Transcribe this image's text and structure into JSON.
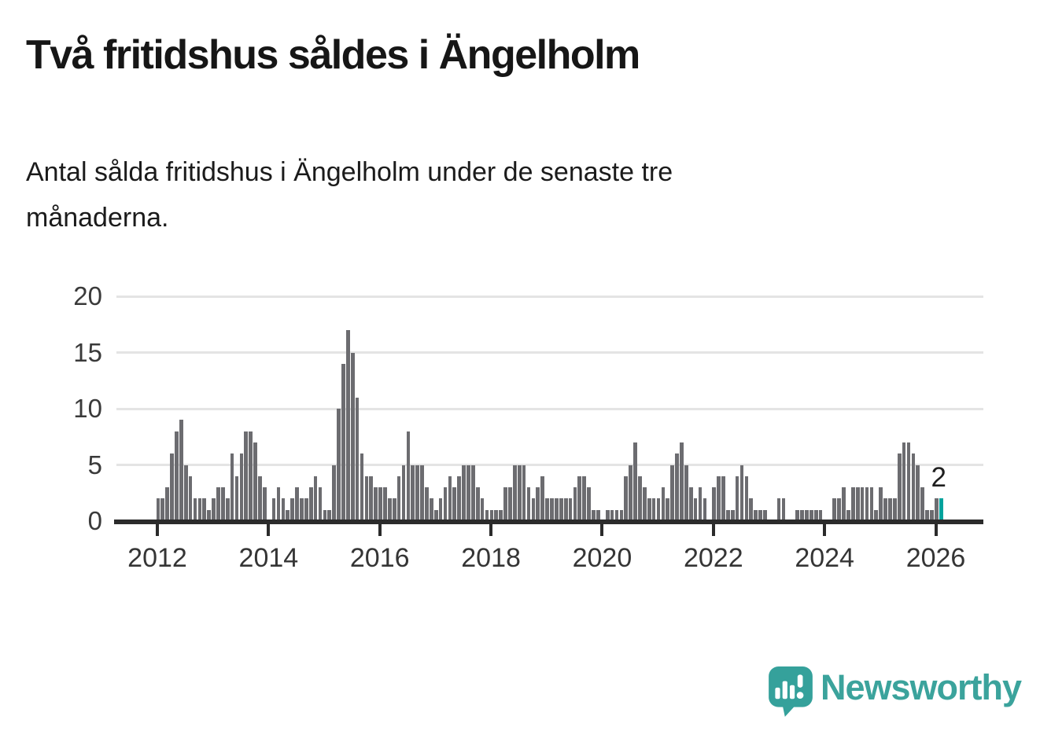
{
  "header": {
    "title": "Två fritidshus såldes i Ängelholm",
    "subtitle": "Antal sålda fritidshus i Ängelholm under de senaste tre månaderna.",
    "subtitle_lines": [
      "Antal sålda fritidshus i Ängelholm under de senaste tre",
      "månaderna."
    ]
  },
  "chart_data": {
    "type": "bar",
    "title": "Två fritidshus såldes i Ängelholm",
    "xlabel": "",
    "ylabel": "",
    "x_start": "2012-01",
    "frequency": "monthly (rolling 3-month sales count)",
    "values": [
      2,
      2,
      3,
      6,
      8,
      9,
      5,
      4,
      2,
      2,
      2,
      1,
      2,
      3,
      3,
      2,
      6,
      4,
      6,
      8,
      8,
      7,
      4,
      3,
      0,
      2,
      3,
      2,
      1,
      2,
      3,
      2,
      2,
      3,
      4,
      3,
      1,
      1,
      5,
      10,
      14,
      17,
      15,
      11,
      6,
      4,
      4,
      3,
      3,
      3,
      2,
      2,
      4,
      5,
      8,
      5,
      5,
      5,
      3,
      2,
      1,
      2,
      3,
      4,
      3,
      4,
      5,
      5,
      5,
      3,
      2,
      1,
      1,
      1,
      1,
      3,
      3,
      5,
      5,
      5,
      3,
      2,
      3,
      4,
      2,
      2,
      2,
      2,
      2,
      2,
      3,
      4,
      4,
      3,
      1,
      1,
      0,
      1,
      1,
      1,
      1,
      4,
      5,
      7,
      4,
      3,
      2,
      2,
      2,
      3,
      2,
      5,
      6,
      7,
      5,
      3,
      2,
      3,
      2,
      0,
      3,
      4,
      4,
      1,
      1,
      4,
      5,
      4,
      2,
      1,
      1,
      1,
      0,
      0,
      2,
      2,
      0,
      0,
      1,
      1,
      1,
      1,
      1,
      1,
      0,
      0,
      2,
      2,
      3,
      1,
      3,
      3,
      3,
      3,
      3,
      1,
      3,
      2,
      2,
      2,
      6,
      7,
      7,
      6,
      5,
      3,
      1,
      1,
      2,
      2
    ],
    "highlight_last_bar": true,
    "highlight_value_label": "2",
    "ylim": [
      0,
      20
    ],
    "yticks": [
      0,
      5,
      10,
      15,
      20
    ],
    "xticks": [
      "2012",
      "2014",
      "2016",
      "2018",
      "2020",
      "2022",
      "2024",
      "2026"
    ],
    "grid": true,
    "legend": "none",
    "bar_color": "#6c6c70",
    "highlight_color": "#00a39d",
    "gridline_color": "#e4e4e4",
    "axis_color": "#2b2b2b"
  },
  "footer": {
    "brand": "Newsworthy",
    "brand_color": "#3ba39c",
    "logo_icon": "newsworthy-speech-bubble-bar-chart-icon"
  }
}
